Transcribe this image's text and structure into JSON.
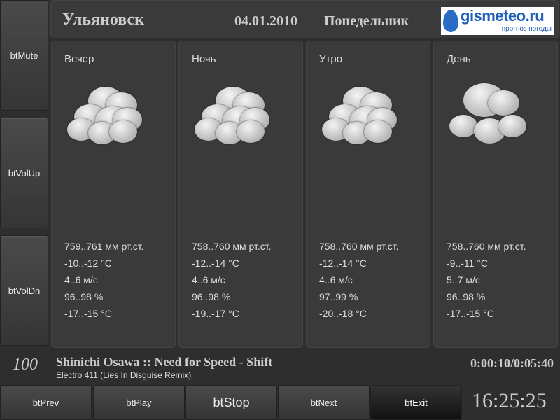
{
  "side_buttons": [
    "btMute",
    "btVolUp",
    "btVolDn"
  ],
  "header": {
    "city": "Ульяновск",
    "date": "04.01.2010",
    "weekday": "Понедельник",
    "logo": {
      "brand": "gismeteo.ru",
      "tagline": "прогноз погоды"
    }
  },
  "periods": [
    {
      "title": "Вечер",
      "icon": "cloudy-icon",
      "pressure": "759..761 мм рт.ст.",
      "temp": "-10..-12 °C",
      "wind": "4..6 м/с",
      "humidity": "96..98 %",
      "feels": "-17..-15 °C"
    },
    {
      "title": "Ночь",
      "icon": "cloudy-icon",
      "pressure": "758..760 мм рт.ст.",
      "temp": "-12..-14 °C",
      "wind": "4..6 м/с",
      "humidity": "96..98 %",
      "feels": "-19..-17 °C"
    },
    {
      "title": "Утро",
      "icon": "cloudy-icon",
      "pressure": "758..760 мм рт.ст.",
      "temp": "-12..-14 °C",
      "wind": "4..6 м/с",
      "humidity": "97..99 %",
      "feels": "-20..-18 °C"
    },
    {
      "title": "День",
      "icon": "cloudy-snow-icon",
      "pressure": "758..760 мм рт.ст.",
      "temp": "-9..-11 °C",
      "wind": "5..7 м/с",
      "humidity": "96..98 %",
      "feels": "-17..-15 °C"
    }
  ],
  "player": {
    "volume": "100",
    "track": "Shinichi Osawa  ::  Need for Speed - Shift",
    "subtitle": "Electro 411 (Lies In Disguise Remix)",
    "time": "0:00:10/0:05:40"
  },
  "bottom_buttons": [
    "btPrev",
    "btPlay",
    "btStop",
    "btNext",
    "btExit"
  ],
  "clock": "16:25:25"
}
